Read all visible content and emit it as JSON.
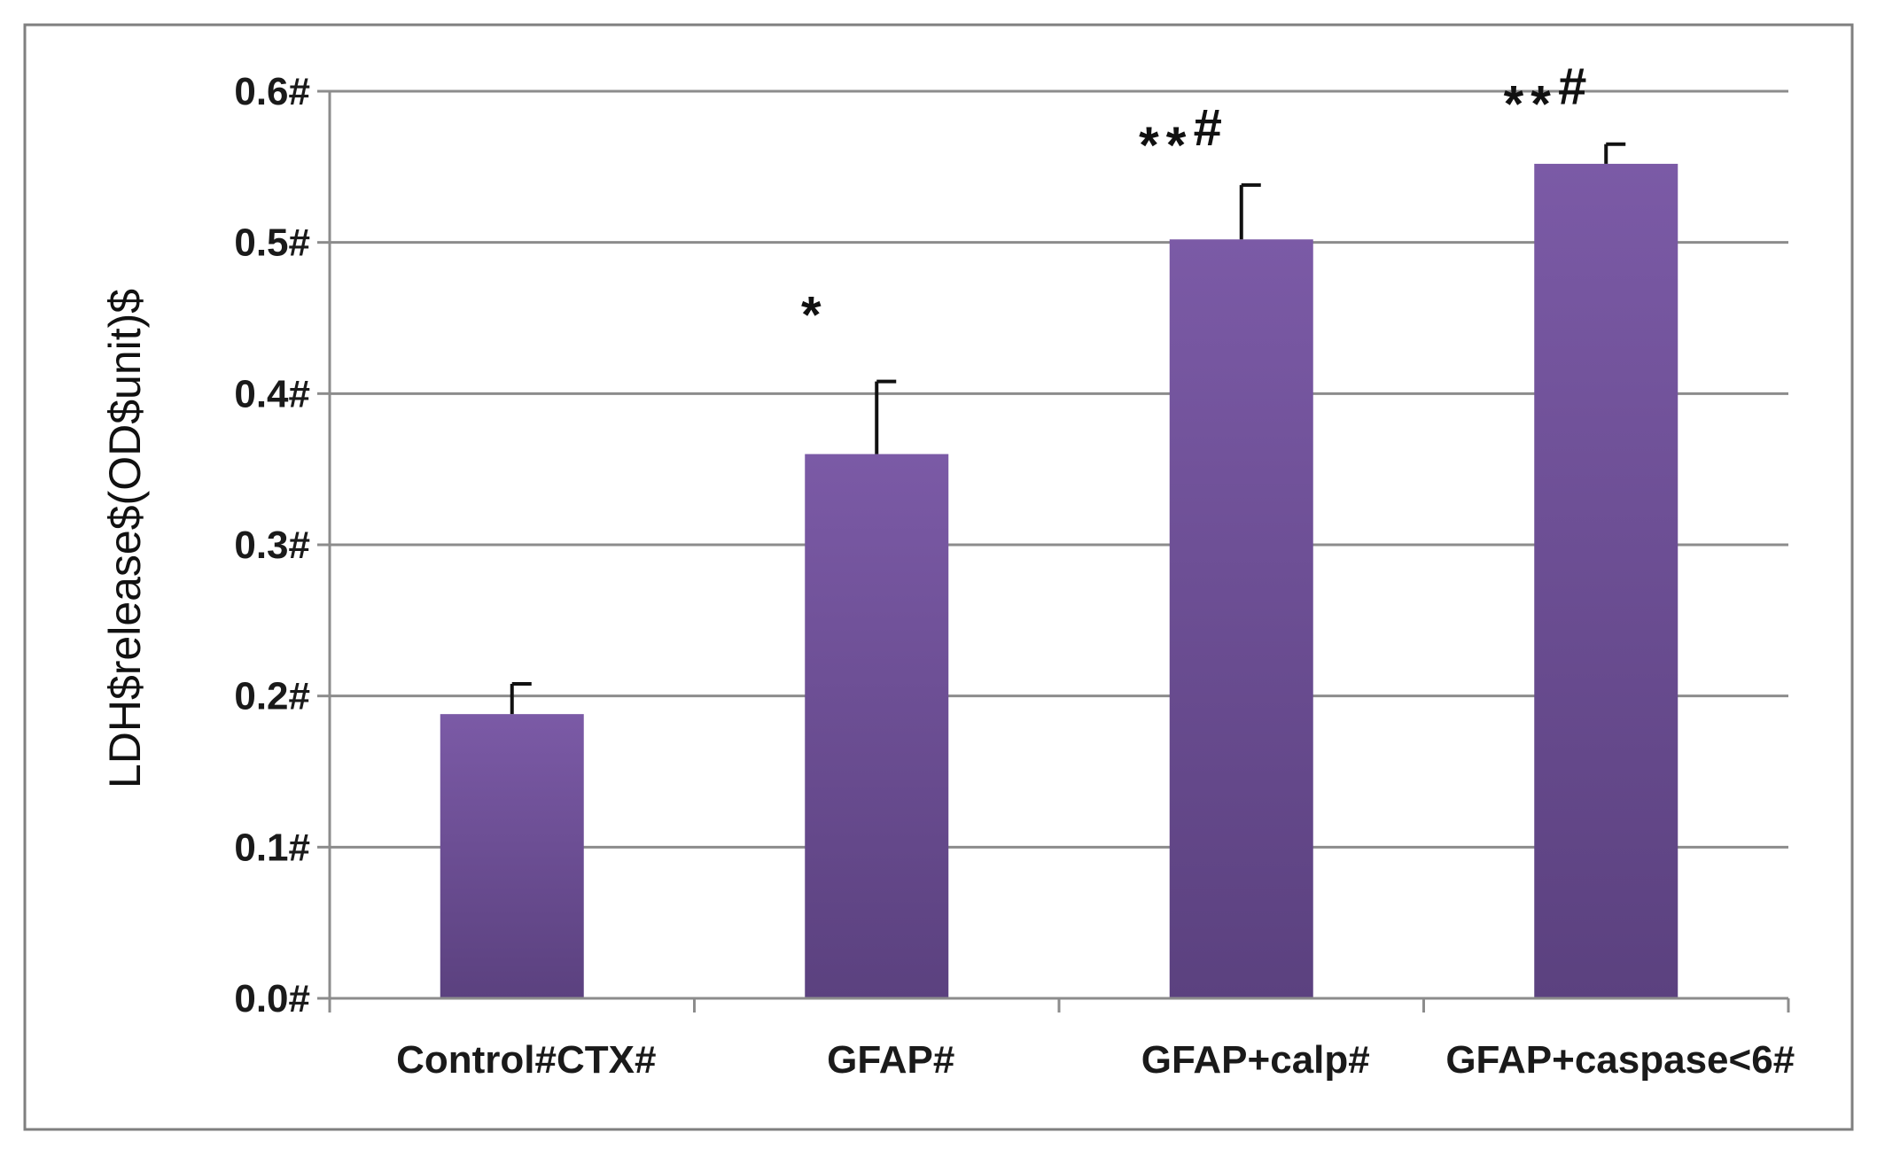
{
  "chart_data": {
    "type": "bar",
    "title": "",
    "xlabel": "",
    "ylabel": "LDH$release$(OD$unit)$",
    "ylim": [
      0,
      0.6
    ],
    "yticks": [
      "0.0#",
      "0.1#",
      "0.2#",
      "0.3#",
      "0.4#",
      "0.5#",
      "0.6#"
    ],
    "categories": [
      "Control#CTX#",
      "GFAP#",
      "GFAP+calp#",
      "GFAP+caspase<6#"
    ],
    "values": [
      0.188,
      0.36,
      0.502,
      0.552
    ],
    "errors": [
      0.02,
      0.048,
      0.036,
      0.013
    ],
    "annotations": [
      {
        "category": 1,
        "stars": "*",
        "hash": ""
      },
      {
        "category": 2,
        "stars": "**",
        "hash": "#"
      },
      {
        "category": 3,
        "stars": "**",
        "hash": "#"
      }
    ],
    "grid": true,
    "colors": {
      "bar_top": "#7b5aa6",
      "bar_bottom": "#5b417f",
      "grid": "#8c8c8c",
      "frame": "#7f7f7f"
    }
  }
}
